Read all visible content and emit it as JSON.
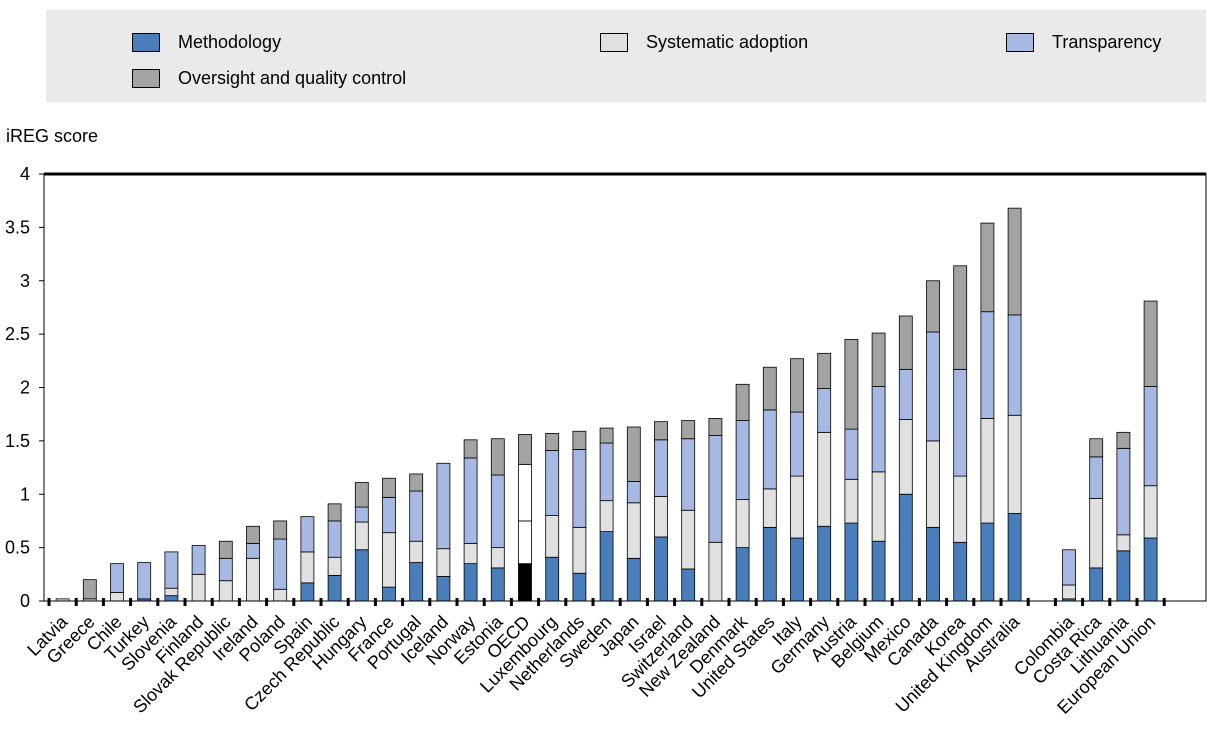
{
  "legend": {
    "items": [
      {
        "label": "Methodology",
        "color": "#4a7ebb"
      },
      {
        "label": "Systematic adoption",
        "color": "#e0e0e0"
      },
      {
        "label": "Transparency",
        "color": "#a7b9e3"
      },
      {
        "label": "Oversight and quality control",
        "color": "#a3a3a3"
      }
    ]
  },
  "chart_data": {
    "type": "bar",
    "stacked": true,
    "ylabel": "iREG score",
    "ylim": [
      0,
      4
    ],
    "yticks": [
      "0",
      "0.5",
      "1",
      "1.5",
      "2",
      "2.5",
      "3",
      "3.5",
      "4"
    ],
    "grid": false,
    "legend_position": "top",
    "categories": [
      "Latvia",
      "Greece",
      "Chile",
      "Turkey",
      "Slovenia",
      "Finland",
      "Slovak Republic",
      "Ireland",
      "Poland",
      "Spain",
      "Czech Republic",
      "Hungary",
      "France",
      "Portugal",
      "Iceland",
      "Norway",
      "Estonia",
      "OECD",
      "Luxembourg",
      "Netherlands",
      "Sweden",
      "Japan",
      "Israel",
      "Switzerland",
      "New Zealand",
      "Denmark",
      "United States",
      "Italy",
      "Germany",
      "Austria",
      "Belgium",
      "Mexico",
      "Canada",
      "Korea",
      "United Kingdom",
      "Australia",
      "Colombia",
      "Costa Rica",
      "Lithuania",
      "European Union"
    ],
    "highlight_category": "OECD",
    "series": [
      {
        "name": "Methodology",
        "values": [
          0.0,
          0.0,
          0.0,
          0.02,
          0.05,
          0.0,
          0.0,
          0.0,
          0.0,
          0.17,
          0.24,
          0.48,
          0.13,
          0.36,
          0.23,
          0.35,
          0.31,
          0.35,
          0.41,
          0.26,
          0.65,
          0.4,
          0.6,
          0.3,
          0.0,
          0.5,
          0.69,
          0.59,
          0.7,
          0.73,
          0.56,
          1.0,
          0.69,
          0.55,
          0.73,
          0.82,
          0.02,
          0.31,
          0.47,
          0.59
        ]
      },
      {
        "name": "Systematic adoption",
        "values": [
          0.02,
          0.02,
          0.08,
          0.0,
          0.07,
          0.25,
          0.19,
          0.4,
          0.11,
          0.29,
          0.17,
          0.26,
          0.51,
          0.2,
          0.26,
          0.19,
          0.19,
          0.4,
          0.39,
          0.43,
          0.29,
          0.52,
          0.38,
          0.55,
          0.55,
          0.45,
          0.36,
          0.58,
          0.88,
          0.41,
          0.65,
          0.7,
          0.81,
          0.62,
          0.98,
          0.92,
          0.13,
          0.65,
          0.15,
          0.49
        ]
      },
      {
        "name": "Transparency",
        "values": [
          0.0,
          0.0,
          0.27,
          0.34,
          0.34,
          0.27,
          0.21,
          0.14,
          0.47,
          0.33,
          0.34,
          0.14,
          0.33,
          0.47,
          0.8,
          0.8,
          0.68,
          0.53,
          0.61,
          0.73,
          0.54,
          0.2,
          0.53,
          0.67,
          1.0,
          0.74,
          0.74,
          0.6,
          0.41,
          0.47,
          0.8,
          0.47,
          1.02,
          1.0,
          1.0,
          0.94,
          0.33,
          0.39,
          0.81,
          0.93
        ]
      },
      {
        "name": "Oversight and quality control",
        "values": [
          0.0,
          0.18,
          0.0,
          0.0,
          0.0,
          0.0,
          0.16,
          0.16,
          0.17,
          0.0,
          0.16,
          0.23,
          0.18,
          0.16,
          0.0,
          0.17,
          0.34,
          0.28,
          0.16,
          0.17,
          0.14,
          0.51,
          0.17,
          0.17,
          0.16,
          0.34,
          0.4,
          0.5,
          0.33,
          0.84,
          0.5,
          0.5,
          0.48,
          0.97,
          0.83,
          1.0,
          0.0,
          0.17,
          0.15,
          0.8
        ]
      }
    ]
  }
}
